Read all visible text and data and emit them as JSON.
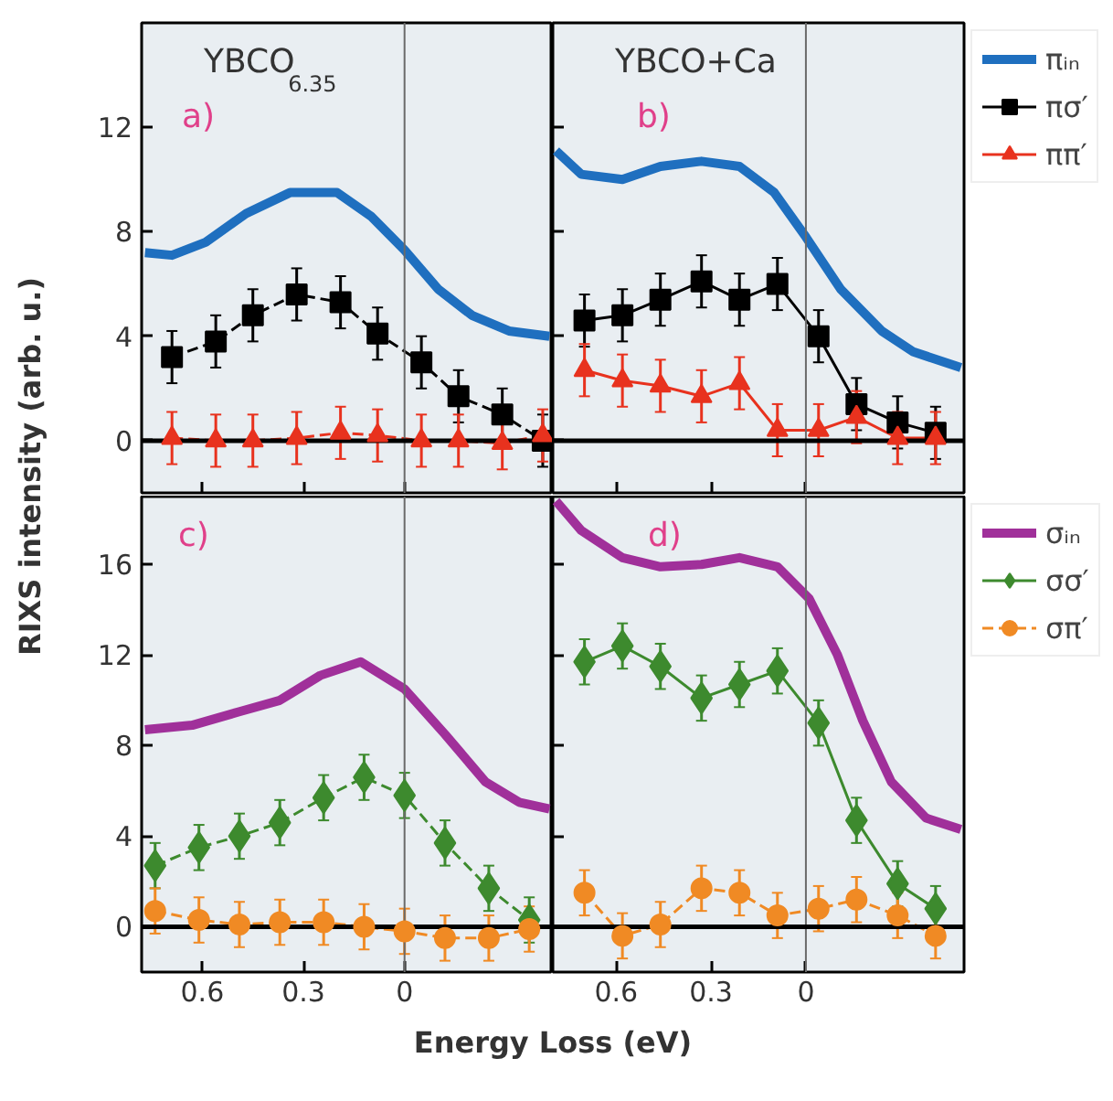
{
  "chart_data": [
    {
      "type": "line",
      "ylabel": "RIXS intensity (arb. u.)",
      "annotations": [
        "YBCO$_{6.35}$",
        "a)"
      ],
      "xlim": [
        0.78,
        -0.44
      ],
      "ylim": [
        -2,
        16
      ],
      "xticks": [
        {
          "value": 0.6,
          "label": null
        },
        {
          "value": 0.3,
          "label": null
        },
        {
          "value": 0,
          "label": null
        }
      ],
      "yticks": [
        0,
        4,
        8,
        12
      ],
      "tick_labels": "y",
      "grid": false,
      "ref_lines": [
        {
          "axis": "x",
          "value": 0
        },
        {
          "axis": "y",
          "value": 0
        }
      ],
      "series": [
        {
          "marker": "none",
          "color": "#1f6fbf",
          "x": [
            0.77,
            0.69,
            0.59,
            0.47,
            0.34,
            0.2,
            0.1,
            0,
            -0.1,
            -0.2,
            -0.31,
            -0.43
          ],
          "values": [
            7.2,
            7.1,
            7.6,
            8.7,
            9.5,
            9.5,
            8.6,
            7.3,
            5.8,
            4.8,
            4.2,
            4.0
          ]
        },
        {
          "marker": "square",
          "line_style": "dashed",
          "color": "#000000",
          "x": [
            0.69,
            0.56,
            0.45,
            0.32,
            0.19,
            0.08,
            -0.05,
            -0.16,
            -0.29,
            -0.41
          ],
          "values": [
            3.2,
            3.8,
            4.8,
            5.6,
            5.3,
            4.1,
            3.0,
            1.7,
            1.0,
            0.0
          ],
          "errors": [
            1,
            1,
            1,
            1,
            1,
            1,
            1,
            1,
            1,
            1
          ]
        },
        {
          "marker": "triangle",
          "line_style": "dashed",
          "color": "#e8321e",
          "x": [
            0.69,
            0.56,
            0.45,
            0.32,
            0.19,
            0.08,
            -0.05,
            -0.16,
            -0.29,
            -0.41
          ],
          "values": [
            0.1,
            0,
            0,
            0.1,
            0.3,
            0.2,
            0,
            0,
            -0.1,
            0.2
          ],
          "errors": [
            1,
            1,
            1,
            1,
            1,
            1,
            1,
            1,
            1,
            1
          ]
        }
      ]
    },
    {
      "type": "line",
      "annotations": [
        "YBCO+Ca",
        "b)"
      ],
      "xlim": [
        0.8,
        -0.5
      ],
      "ylim": [
        -2,
        16
      ],
      "xticks": [
        {
          "value": 0.6,
          "label": null
        },
        {
          "value": 0.3,
          "label": null
        },
        {
          "value": 0,
          "label": null
        }
      ],
      "yticks": [
        {
          "value": 0,
          "label": null
        },
        {
          "value": 4,
          "label": null
        },
        {
          "value": 8,
          "label": null
        },
        {
          "value": 12,
          "label": null
        }
      ],
      "tick_labels": false,
      "grid": false,
      "legend": "right",
      "ref_lines": [
        {
          "axis": "x",
          "value": 0
        },
        {
          "axis": "y",
          "value": 0
        }
      ],
      "series": [
        {
          "name": "πᵢₙ",
          "marker": "none",
          "color": "#1f6fbf",
          "x": [
            0.79,
            0.71,
            0.58,
            0.46,
            0.33,
            0.21,
            0.1,
            0,
            -0.11,
            -0.24,
            -0.34,
            -0.49
          ],
          "values": [
            11.1,
            10.2,
            10.0,
            10.5,
            10.7,
            10.5,
            9.5,
            7.8,
            5.8,
            4.2,
            3.4,
            2.8
          ]
        },
        {
          "name": "πσ′",
          "marker": "square",
          "line_style": "solid",
          "color": "#000000",
          "x": [
            0.7,
            0.58,
            0.46,
            0.33,
            0.21,
            0.09,
            -0.04,
            -0.16,
            -0.29,
            -0.41
          ],
          "values": [
            4.6,
            4.8,
            5.4,
            6.1,
            5.4,
            6.0,
            4.0,
            1.4,
            0.7,
            0.3
          ],
          "errors": [
            1,
            1,
            1,
            1,
            1,
            1,
            1,
            1,
            1,
            1
          ]
        },
        {
          "name": "ππ′",
          "marker": "triangle",
          "line_style": "solid",
          "color": "#e8321e",
          "x": [
            0.7,
            0.58,
            0.46,
            0.33,
            0.21,
            0.09,
            -0.04,
            -0.16,
            -0.29,
            -0.41
          ],
          "values": [
            2.7,
            2.3,
            2.1,
            1.7,
            2.2,
            0.4,
            0.4,
            0.9,
            0.1,
            0.1
          ],
          "errors": [
            1,
            1,
            1,
            1,
            1,
            1,
            1,
            1,
            1,
            1
          ]
        }
      ]
    },
    {
      "type": "line",
      "xlabel": "Energy Loss (eV)",
      "annotations": [
        "c)"
      ],
      "xlim": [
        0.78,
        -0.44
      ],
      "ylim": [
        -2,
        19
      ],
      "xticks": [
        0.6,
        0.3,
        0
      ],
      "yticks": [
        0,
        4,
        8,
        12,
        16
      ],
      "grid": false,
      "ref_lines": [
        {
          "axis": "x",
          "value": 0
        },
        {
          "axis": "y",
          "value": 0
        }
      ],
      "series": [
        {
          "marker": "none",
          "color": "#a0309a",
          "x": [
            0.77,
            0.63,
            0.49,
            0.37,
            0.25,
            0.13,
            0,
            -0.12,
            -0.24,
            -0.34,
            -0.43
          ],
          "values": [
            8.7,
            8.9,
            9.5,
            10.0,
            11.1,
            11.7,
            10.5,
            8.5,
            6.4,
            5.5,
            5.2
          ]
        },
        {
          "marker": "diamond",
          "line_style": "dashed",
          "color": "#3d8a2e",
          "x": [
            0.74,
            0.61,
            0.49,
            0.37,
            0.24,
            0.12,
            0,
            -0.12,
            -0.25,
            -0.37
          ],
          "values": [
            2.7,
            3.5,
            4.0,
            4.6,
            5.7,
            6.6,
            5.8,
            3.7,
            1.7,
            0.3
          ],
          "errors": [
            1,
            1,
            1,
            1,
            1,
            1,
            1,
            1,
            1,
            1
          ]
        },
        {
          "marker": "circle",
          "line_style": "dashed",
          "color": "#f08a24",
          "x": [
            0.74,
            0.61,
            0.49,
            0.37,
            0.24,
            0.12,
            0,
            -0.12,
            -0.25,
            -0.37
          ],
          "values": [
            0.7,
            0.3,
            0.1,
            0.2,
            0.2,
            0,
            -0.2,
            -0.5,
            -0.5,
            -0.1
          ],
          "errors": [
            1,
            1,
            1,
            1,
            1,
            1,
            1,
            1,
            1,
            1
          ]
        }
      ]
    },
    {
      "type": "line",
      "annotations": [
        "d)"
      ],
      "xlim": [
        0.8,
        -0.5
      ],
      "ylim": [
        -2,
        19
      ],
      "xticks": [
        0.6,
        0.3,
        0
      ],
      "yticks": [
        {
          "value": 0,
          "label": null
        },
        {
          "value": 4,
          "label": null
        },
        {
          "value": 8,
          "label": null
        },
        {
          "value": 12,
          "label": null
        },
        {
          "value": 16,
          "label": null
        }
      ],
      "tick_labels": "x",
      "grid": false,
      "legend": "right",
      "ref_lines": [
        {
          "axis": "x",
          "value": 0
        },
        {
          "axis": "y",
          "value": 0
        }
      ],
      "series": [
        {
          "name": "σᵢₙ",
          "marker": "none",
          "color": "#a0309a",
          "x": [
            0.79,
            0.71,
            0.58,
            0.46,
            0.33,
            0.21,
            0.09,
            -0.01,
            -0.1,
            -0.18,
            -0.27,
            -0.38,
            -0.49
          ],
          "values": [
            18.8,
            17.5,
            16.3,
            15.9,
            16.0,
            16.3,
            15.9,
            14.5,
            12.0,
            9.1,
            6.4,
            4.8,
            4.3
          ]
        },
        {
          "name": "σσ′",
          "marker": "diamond",
          "line_style": "solid",
          "color": "#3d8a2e",
          "x": [
            0.7,
            0.58,
            0.46,
            0.33,
            0.21,
            0.09,
            -0.04,
            -0.16,
            -0.29,
            -0.41
          ],
          "values": [
            11.7,
            12.4,
            11.5,
            10.1,
            10.7,
            11.3,
            9.0,
            4.7,
            1.9,
            0.8
          ],
          "errors": [
            1,
            1,
            1,
            1,
            1,
            1,
            1,
            1,
            1,
            1
          ]
        },
        {
          "name": "σπ′",
          "marker": "circle",
          "line_style": "dashed",
          "color": "#f08a24",
          "x": [
            0.7,
            0.58,
            0.46,
            0.33,
            0.21,
            0.09,
            -0.04,
            -0.16,
            -0.29,
            -0.41
          ],
          "values": [
            1.5,
            -0.4,
            0.1,
            1.7,
            1.5,
            0.5,
            0.8,
            1.2,
            0.5,
            -0.4
          ],
          "errors": [
            1,
            1,
            1,
            1,
            1,
            1,
            1,
            1,
            1,
            1
          ]
        }
      ]
    }
  ]
}
